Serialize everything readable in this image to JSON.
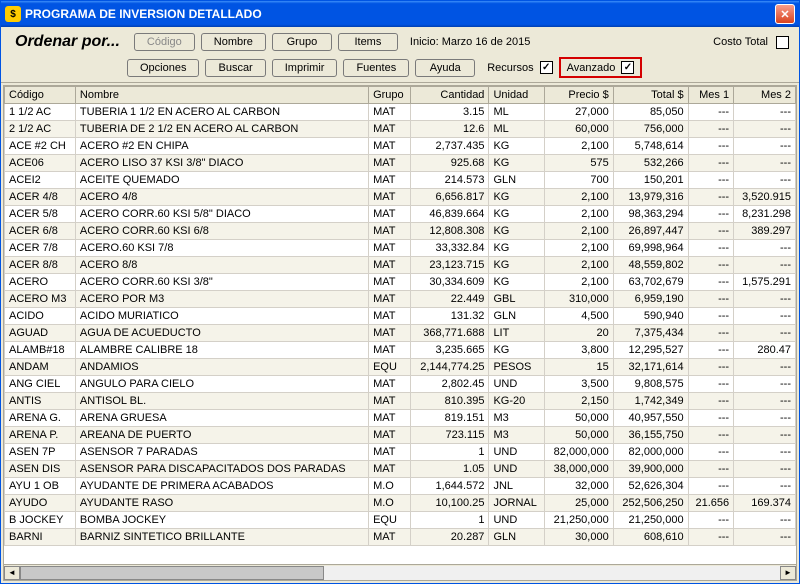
{
  "window": {
    "title": "PROGRAMA DE INVERSION DETALLADO"
  },
  "toolbar": {
    "ordenar": "Ordenar por...",
    "codigo": "Código",
    "nombre": "Nombre",
    "grupo": "Grupo",
    "items": "Items",
    "inicio": "Inicio: Marzo 16 de 2015",
    "costo_total": "Costo Total",
    "opciones": "Opciones",
    "buscar": "Buscar",
    "imprimir": "Imprimir",
    "fuentes": "Fuentes",
    "ayuda": "Ayuda",
    "recursos": "Recursos",
    "avanzado": "Avanzado"
  },
  "columns": [
    "Código",
    "Nombre",
    "Grupo",
    "Cantidad",
    "Unidad",
    "Precio $",
    "Total $",
    "Mes 1",
    "Mes 2"
  ],
  "rows": [
    {
      "codigo": "1 1/2 AC",
      "nombre": "TUBERIA 1 1/2 EN ACERO AL CARBON",
      "grupo": "MAT",
      "cantidad": "3.15",
      "unidad": "ML",
      "precio": "27,000",
      "total": "85,050",
      "m1": "---",
      "m2": "---"
    },
    {
      "codigo": "2 1/2 AC",
      "nombre": "TUBERIA DE 2 1/2 EN ACERO AL CARBON",
      "grupo": "MAT",
      "cantidad": "12.6",
      "unidad": "ML",
      "precio": "60,000",
      "total": "756,000",
      "m1": "---",
      "m2": "---"
    },
    {
      "codigo": "ACE #2 CH",
      "nombre": "ACERO #2 EN CHIPA",
      "grupo": "MAT",
      "cantidad": "2,737.435",
      "unidad": "KG",
      "precio": "2,100",
      "total": "5,748,614",
      "m1": "---",
      "m2": "---"
    },
    {
      "codigo": "ACE06",
      "nombre": "ACERO LISO 37 KSI 3/8\"   DIACO",
      "grupo": "MAT",
      "cantidad": "925.68",
      "unidad": "KG",
      "precio": "575",
      "total": "532,266",
      "m1": "---",
      "m2": "---"
    },
    {
      "codigo": "ACEI2",
      "nombre": "ACEITE QUEMADO",
      "grupo": "MAT",
      "cantidad": "214.573",
      "unidad": "GLN",
      "precio": "700",
      "total": "150,201",
      "m1": "---",
      "m2": "---"
    },
    {
      "codigo": "ACER 4/8",
      "nombre": "ACERO 4/8",
      "grupo": "MAT",
      "cantidad": "6,656.817",
      "unidad": "KG",
      "precio": "2,100",
      "total": "13,979,316",
      "m1": "---",
      "m2": "3,520.915"
    },
    {
      "codigo": "ACER 5/8",
      "nombre": "ACERO CORR.60 KSI   5/8\" DIACO",
      "grupo": "MAT",
      "cantidad": "46,839.664",
      "unidad": "KG",
      "precio": "2,100",
      "total": "98,363,294",
      "m1": "---",
      "m2": "8,231.298"
    },
    {
      "codigo": "ACER 6/8",
      "nombre": "ACERO CORR.60 KSI   6/8",
      "grupo": "MAT",
      "cantidad": "12,808.308",
      "unidad": "KG",
      "precio": "2,100",
      "total": "26,897,447",
      "m1": "---",
      "m2": "389.297"
    },
    {
      "codigo": "ACER 7/8",
      "nombre": "ACERO.60 KSI   7/8",
      "grupo": "MAT",
      "cantidad": "33,332.84",
      "unidad": "KG",
      "precio": "2,100",
      "total": "69,998,964",
      "m1": "---",
      "m2": "---"
    },
    {
      "codigo": "ACER 8/8",
      "nombre": "ACERO 8/8",
      "grupo": "MAT",
      "cantidad": "23,123.715",
      "unidad": "KG",
      "precio": "2,100",
      "total": "48,559,802",
      "m1": "---",
      "m2": "---"
    },
    {
      "codigo": "ACERO",
      "nombre": "ACERO CORR.60 KSI    3/8\"",
      "grupo": "MAT",
      "cantidad": "30,334.609",
      "unidad": "KG",
      "precio": "2,100",
      "total": "63,702,679",
      "m1": "---",
      "m2": "1,575.291"
    },
    {
      "codigo": "ACERO M3",
      "nombre": "ACERO POR M3",
      "grupo": "MAT",
      "cantidad": "22.449",
      "unidad": "GBL",
      "precio": "310,000",
      "total": "6,959,190",
      "m1": "---",
      "m2": "---"
    },
    {
      "codigo": "ACIDO",
      "nombre": "ACIDO MURIATICO",
      "grupo": "MAT",
      "cantidad": "131.32",
      "unidad": "GLN",
      "precio": "4,500",
      "total": "590,940",
      "m1": "---",
      "m2": "---"
    },
    {
      "codigo": "AGUAD",
      "nombre": "AGUA DE ACUEDUCTO",
      "grupo": "MAT",
      "cantidad": "368,771.688",
      "unidad": "LIT",
      "precio": "20",
      "total": "7,375,434",
      "m1": "---",
      "m2": "---"
    },
    {
      "codigo": "ALAMB#18",
      "nombre": "ALAMBRE CALIBRE 18",
      "grupo": "MAT",
      "cantidad": "3,235.665",
      "unidad": "KG",
      "precio": "3,800",
      "total": "12,295,527",
      "m1": "---",
      "m2": "280.47"
    },
    {
      "codigo": "ANDAM",
      "nombre": "ANDAMIOS",
      "grupo": "EQU",
      "cantidad": "2,144,774.25",
      "unidad": "PESOS",
      "precio": "15",
      "total": "32,171,614",
      "m1": "---",
      "m2": "---"
    },
    {
      "codigo": "ANG CIEL",
      "nombre": "ANGULO PARA CIELO",
      "grupo": "MAT",
      "cantidad": "2,802.45",
      "unidad": "UND",
      "precio": "3,500",
      "total": "9,808,575",
      "m1": "---",
      "m2": "---"
    },
    {
      "codigo": "ANTIS",
      "nombre": "ANTISOL BL.",
      "grupo": "MAT",
      "cantidad": "810.395",
      "unidad": "KG-20",
      "precio": "2,150",
      "total": "1,742,349",
      "m1": "---",
      "m2": "---"
    },
    {
      "codigo": "ARENA G.",
      "nombre": "ARENA GRUESA",
      "grupo": "MAT",
      "cantidad": "819.151",
      "unidad": "M3",
      "precio": "50,000",
      "total": "40,957,550",
      "m1": "---",
      "m2": "---"
    },
    {
      "codigo": "ARENA P.",
      "nombre": "AREANA DE PUERTO",
      "grupo": "MAT",
      "cantidad": "723.115",
      "unidad": "M3",
      "precio": "50,000",
      "total": "36,155,750",
      "m1": "---",
      "m2": "---"
    },
    {
      "codigo": "ASEN 7P",
      "nombre": "ASENSOR 7 PARADAS",
      "grupo": "MAT",
      "cantidad": "1",
      "unidad": "UND",
      "precio": "82,000,000",
      "total": "82,000,000",
      "m1": "---",
      "m2": "---"
    },
    {
      "codigo": "ASEN DIS",
      "nombre": "ASENSOR PARA DISCAPACITADOS DOS PARADAS",
      "grupo": "MAT",
      "cantidad": "1.05",
      "unidad": "UND",
      "precio": "38,000,000",
      "total": "39,900,000",
      "m1": "---",
      "m2": "---"
    },
    {
      "codigo": "AYU 1 OB",
      "nombre": "AYUDANTE DE PRIMERA ACABADOS",
      "grupo": "M.O",
      "cantidad": "1,644.572",
      "unidad": "JNL",
      "precio": "32,000",
      "total": "52,626,304",
      "m1": "---",
      "m2": "---"
    },
    {
      "codigo": "AYUDO",
      "nombre": "AYUDANTE RASO",
      "grupo": "M.O",
      "cantidad": "10,100.25",
      "unidad": "JORNAL",
      "precio": "25,000",
      "total": "252,506,250",
      "m1": "21.656",
      "m2": "169.374"
    },
    {
      "codigo": "B JOCKEY",
      "nombre": "BOMBA JOCKEY",
      "grupo": "EQU",
      "cantidad": "1",
      "unidad": "UND",
      "precio": "21,250,000",
      "total": "21,250,000",
      "m1": "---",
      "m2": "---"
    },
    {
      "codigo": "BARNI",
      "nombre": "BARNIZ SINTETICO BRILLANTE",
      "grupo": "MAT",
      "cantidad": "20.287",
      "unidad": "GLN",
      "precio": "30,000",
      "total": "608,610",
      "m1": "---",
      "m2": "---"
    }
  ]
}
